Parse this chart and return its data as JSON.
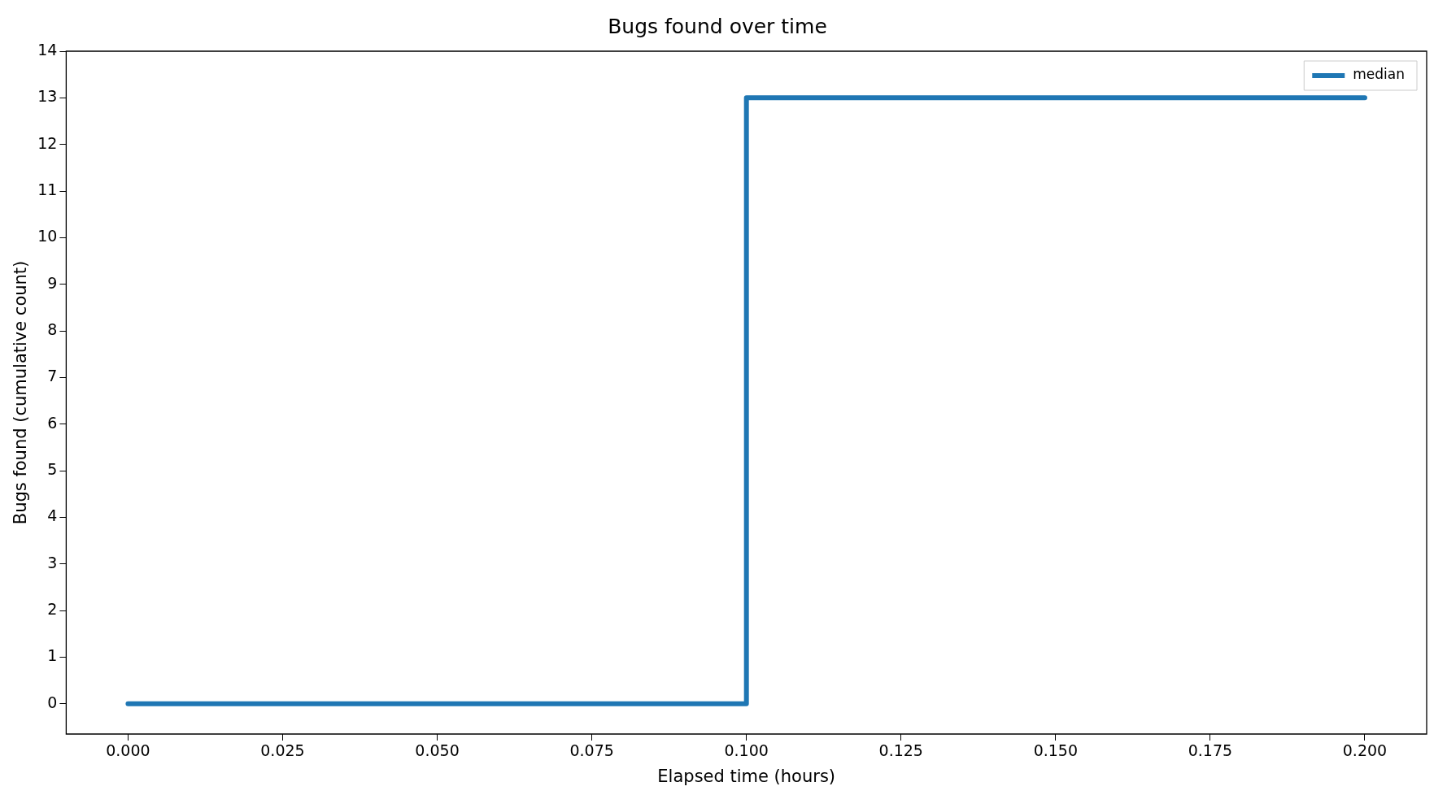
{
  "chart_data": {
    "type": "step",
    "title": "Bugs found over time",
    "xlabel": "Elapsed time (hours)",
    "ylabel": "Bugs found (cumulative count)",
    "x": [
      0,
      0.1,
      0.2
    ],
    "series": [
      {
        "name": "median",
        "color": "#1f77b4",
        "values": [
          0,
          13,
          13
        ]
      }
    ],
    "xlim": [
      -0.01,
      0.21
    ],
    "xticks": [
      {
        "value": 0,
        "label": "0.000"
      },
      {
        "value": 0.025,
        "label": "0.025"
      },
      {
        "value": 0.05,
        "label": "0.050"
      },
      {
        "value": 0.075,
        "label": "0.075"
      },
      {
        "value": 0.1,
        "label": "0.100"
      },
      {
        "value": 0.125,
        "label": "0.125"
      },
      {
        "value": 0.15,
        "label": "0.150"
      },
      {
        "value": 0.175,
        "label": "0.175"
      },
      {
        "value": 0.2,
        "label": "0.200"
      }
    ],
    "ylim": [
      -0.65,
      14
    ],
    "yticks": [
      0,
      1,
      2,
      3,
      4,
      5,
      6,
      7,
      8,
      9,
      10,
      11,
      12,
      13,
      14
    ],
    "grid": false,
    "legend": "top right"
  }
}
